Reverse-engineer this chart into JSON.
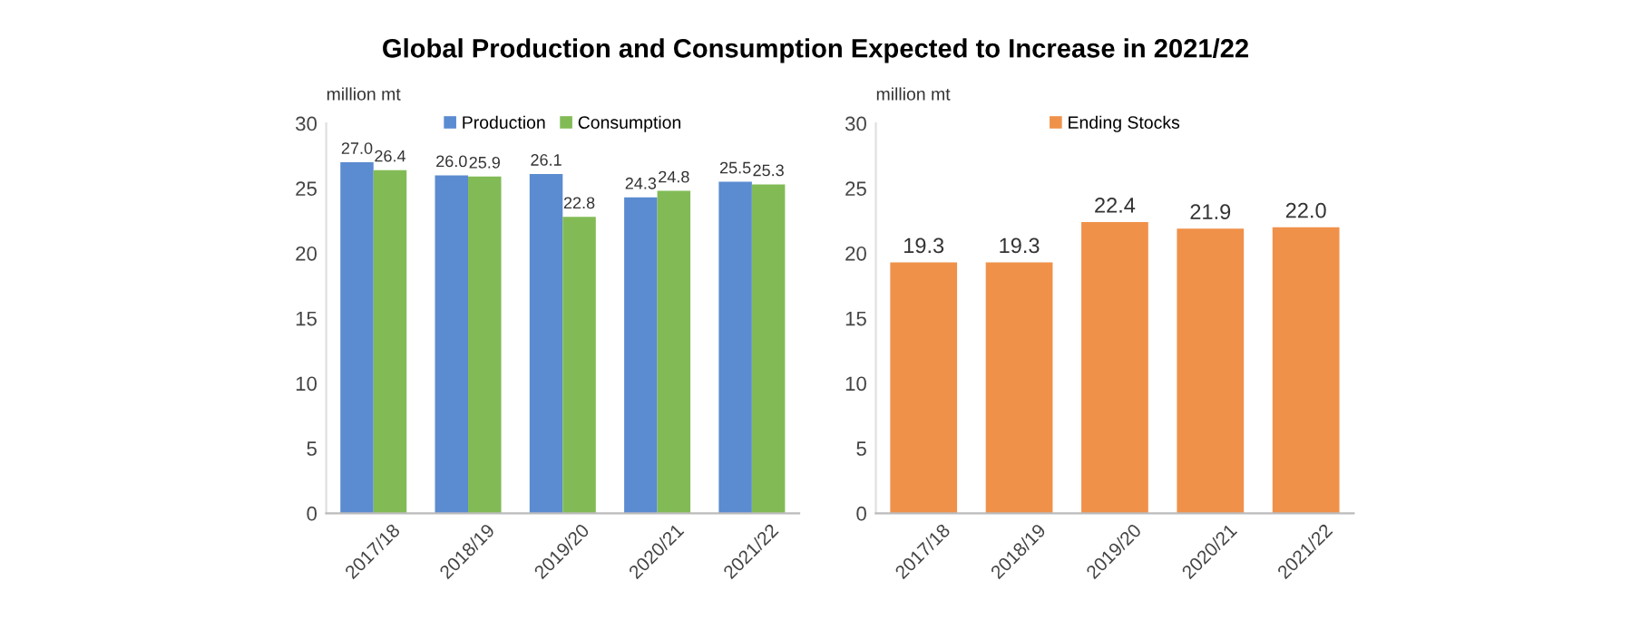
{
  "chart_data": [
    {
      "type": "bar",
      "title": "Global Production and Consumption Expected to Increase in 2021/22",
      "ylabel": "million mt",
      "categories": [
        "2017/18",
        "2018/19",
        "2019/20",
        "2020/21",
        "2021/22"
      ],
      "series": [
        {
          "name": "Production",
          "color": "#5b8bd0",
          "values": [
            27.0,
            26.0,
            26.1,
            24.3,
            25.5
          ],
          "value_labels": [
            "27.0",
            "26.0",
            "26.1",
            "24.3",
            "25.5"
          ]
        },
        {
          "name": "Consumption",
          "color": "#82bb56",
          "values": [
            26.4,
            25.9,
            22.8,
            24.8,
            25.3
          ],
          "value_labels": [
            "26.4",
            "25.9",
            "22.8",
            "24.8",
            "25.3"
          ]
        }
      ],
      "ylim": [
        0,
        30
      ],
      "yticks": [
        0,
        5,
        10,
        15,
        20,
        25,
        30
      ],
      "legend": "top",
      "grid": false
    },
    {
      "type": "bar",
      "ylabel": "million mt",
      "categories": [
        "2017/18",
        "2018/19",
        "2019/20",
        "2020/21",
        "2021/22"
      ],
      "series": [
        {
          "name": "Ending Stocks",
          "color": "#f0914a",
          "values": [
            19.3,
            19.3,
            22.4,
            21.9,
            22.0
          ],
          "value_labels": [
            "19.3",
            "19.3",
            "22.4",
            "21.9",
            "22.0"
          ]
        }
      ],
      "ylim": [
        0,
        30
      ],
      "yticks": [
        0,
        5,
        10,
        15,
        20,
        25,
        30
      ],
      "legend": "top",
      "grid": false
    }
  ]
}
